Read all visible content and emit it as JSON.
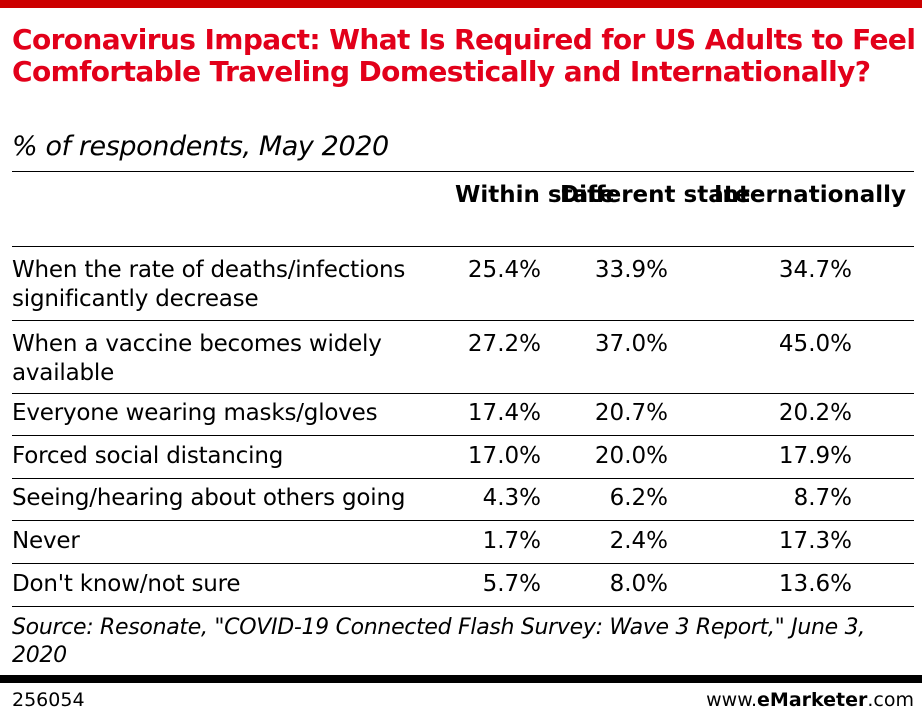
{
  "header": {
    "title": "Coronavirus Impact: What Is Required for US Adults to Feel Comfortable Traveling Domestically and Internationally?",
    "subtitle": "% of respondents, May 2020"
  },
  "table": {
    "columns": [
      "Within state",
      "Different state",
      "Internationally"
    ],
    "rows": [
      {
        "label": "When the rate of deaths/infections significantly decrease",
        "values": [
          "25.4%",
          "33.9%",
          "34.7%"
        ]
      },
      {
        "label": "When a vaccine becomes widely available",
        "values": [
          "27.2%",
          "37.0%",
          "45.0%"
        ]
      },
      {
        "label": "Everyone wearing masks/gloves",
        "values": [
          "17.4%",
          "20.7%",
          "20.2%"
        ]
      },
      {
        "label": "Forced social distancing",
        "values": [
          "17.0%",
          "20.0%",
          "17.9%"
        ]
      },
      {
        "label": "Seeing/hearing about others going",
        "values": [
          "4.3%",
          "6.2%",
          "8.7%"
        ]
      },
      {
        "label": "Never",
        "values": [
          "1.7%",
          "2.4%",
          "17.3%"
        ]
      },
      {
        "label": "Don't know/not sure",
        "values": [
          "5.7%",
          "8.0%",
          "13.6%"
        ]
      }
    ]
  },
  "footer": {
    "source": "Source: Resonate, \"COVID-19 Connected Flash Survey: Wave 3 Report,\" June 3, 2020",
    "chart_id": "256054",
    "brand_prefix": "www.",
    "brand_name": "eMarketer",
    "brand_suffix": ".com"
  },
  "colors": {
    "title": "#e2001a",
    "accent_bar": "#cc0000",
    "text": "#000000"
  }
}
